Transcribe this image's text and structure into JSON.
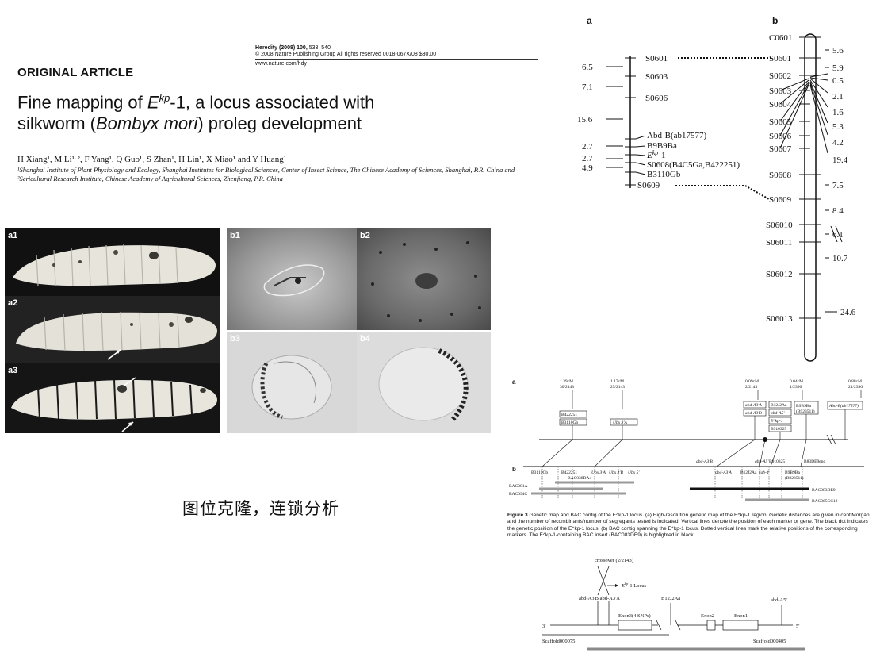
{
  "header": {
    "journal_name": "Heredity (2008) 100,",
    "journal_pages": " 533–540",
    "copyright": "© 2008 Nature Publishing Group All rights reserved 0018-067X/08 $30.00",
    "url": "www.nature.com/hdy",
    "article_type": "ORIGINAL ARTICLE"
  },
  "article": {
    "title_part1": "Fine mapping of ",
    "title_gene": "E",
    "title_gene_sup": "kp",
    "title_part2": "-1, a locus associated with",
    "title_line2_pre": "silkworm (",
    "title_species": "Bombyx mori",
    "title_line2_post": ") proleg development",
    "authors": "H Xiang¹, M Li¹·², F Yang¹, Q Guo¹, S Zhan¹, H Lin¹, X Miao¹ and Y Huang¹",
    "affiliations": "¹Shanghai Institute of Plant Physiology and Ecology, Shanghai Institutes for Biological Sciences, Center of Insect Science, The Chinese Academy of Sciences, Shanghai, P.R. China and ²Sericultural Research Institute, Chinese Academy of Agricultural Sciences, Zhenjiang, P.R. China"
  },
  "photos": {
    "a": [
      "a1",
      "a2",
      "a3"
    ],
    "b": [
      "b1",
      "b2",
      "b3",
      "b4"
    ]
  },
  "annotation": "图位克隆，连锁分析",
  "genetic_map": {
    "panel_a_label": "a",
    "panel_b_label": "b",
    "map_a_markers": [
      "S0601",
      "S0603",
      "S0606",
      "Abd-B(ab17577)",
      "B9B9Ba",
      "E",
      "S0608(B4C5Ga,B422251)",
      "B3110Gb",
      "S0609"
    ],
    "map_a_ekp_sup": "kp",
    "map_a_ekp_suffix": "-1",
    "map_a_distances": [
      "6.5",
      "7.1",
      "15.6",
      "2.7",
      "2.7",
      "4.9"
    ],
    "map_b_markers": [
      "C0601",
      "S0601",
      "S0602",
      "S0603",
      "S0604",
      "S0605",
      "S0606",
      "S0607",
      "S0608",
      "S0609",
      "S06010",
      "S06011",
      "S06012",
      "S06013"
    ],
    "map_b_distances": [
      "5.6",
      "5.9",
      "0.5",
      "2.1",
      "1.6",
      "5.3",
      "4.2",
      "19.4",
      "7.5",
      "8.4",
      "6.1",
      "10.7",
      "24.6"
    ]
  },
  "figure3": {
    "label_a": "a",
    "label_b": "b",
    "top_stats": [
      {
        "cm": "1.39cM",
        "frac": "30/2143"
      },
      {
        "cm": "1.17cM",
        "frac": "25/2143"
      },
      {
        "cm": "0.09cM",
        "frac": "2/2143"
      },
      {
        "cm": "0.04cM",
        "frac": "1/2396"
      },
      {
        "cm": "0.88cM",
        "frac": "21/2396"
      }
    ],
    "boxes": [
      "B422251",
      "B3110Gb",
      "Ubx 3'A",
      "abd-A3'A",
      "abd-A3'B",
      "B12J2Aa",
      "abd-A5'",
      "E^kp-1",
      "B910325",
      "B9B9Ba",
      "(B923511)",
      "Abd-B(ab17577)"
    ],
    "contig_labels": [
      "B3110Gb",
      "B422251",
      "Ubx 3'A",
      "Ubx 3'B",
      "Ubx 5'",
      "BAC038DA4",
      "abd-A3'B",
      "abd-A3'A",
      "B12J2Aa",
      "abd-A5'",
      "B910325",
      "iab-4",
      "B9B9Ba",
      "(B923511)",
      "B83DE9end"
    ],
    "bac_labels": [
      "BAC081A",
      "BAC094C",
      "BAC083DE9",
      "BAC065CC12"
    ],
    "caption_bold": "Figure 3",
    "caption_text": " Genetic map and BAC contig of the E^kp-1 locus. (a) High-resolution genetic map of the E^kp-1 region. Genetic distances are given in centiMorgan, and the number of recombinants/number of segregants tested is indicated. Vertical lines denote the position of each marker or gene. The black dot indicates the genetic position of the E^kp-1 locus. (b) BAC contig spanning the E^kp-1 locus. Dotted vertical lines mark the relative positions of the corresponding markers. The E^kp-1-containing BAC insert (BAC083DE9) is highlighted in black."
  },
  "crossover": {
    "title": "crossover (2/2143)",
    "locus": "E",
    "locus_sup": "kp",
    "locus_suffix": "-1 Locus",
    "markers_left": "abd-A3'B abd-A3'A",
    "marker_mid": "B12J2Aa",
    "marker_right": "abd-A5'",
    "exon3": "Exon3(4 SNPs)",
    "exon2": "Exon2",
    "exon1": "Exon1",
    "end3": "3'",
    "end5": "5'",
    "scaffold_left": "Scaffold000075",
    "scaffold_right": "Scaffold000405"
  }
}
